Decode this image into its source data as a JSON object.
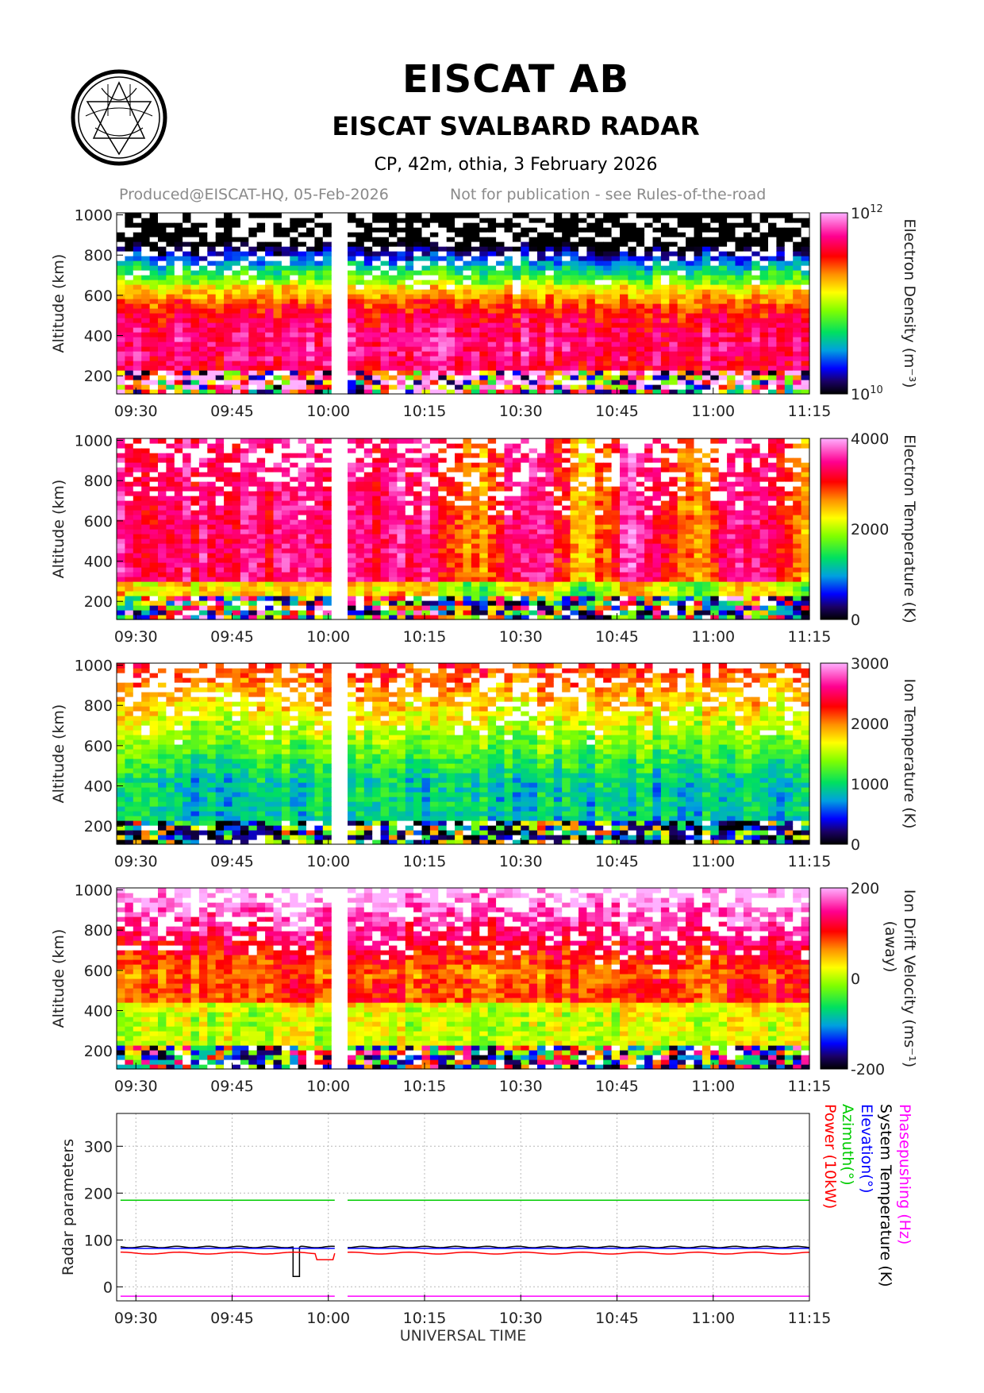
{
  "header": {
    "title": "EISCAT AB",
    "subtitle": "EISCAT SVALBARD RADAR",
    "experiment": "CP, 42m, othia, 3 February 2026",
    "produced": "Produced@EISCAT-HQ, 05-Feb-2026",
    "notice": "Not for publication - see Rules-of-the-road"
  },
  "logo": {
    "name": "eiscat-logo"
  },
  "chart_data": [
    {
      "type": "heatmap",
      "title": "Electron Density",
      "colorbar_label": "Electron Density (m⁻³)",
      "colorbar_ticks": [
        "10",
        "10"
      ],
      "colorbar_tick_exponents": [
        "12",
        "10"
      ],
      "colorbar_range": [
        10000000000,
        1000000000000
      ],
      "colorbar_scale": "log",
      "ylabel": "Altitude (km)",
      "yticks": [
        "1000",
        "800",
        "600",
        "400",
        "200"
      ],
      "ylim": [
        110,
        1010
      ],
      "xticks": [
        "09:30",
        "09:45",
        "10:00",
        "10:15",
        "10:30",
        "10:45",
        "11:00",
        "11:15"
      ],
      "xrange": [
        "09:27",
        "11:15"
      ],
      "data_gap": [
        "10:01",
        "10:03"
      ],
      "profile": "F-region peak near 300–400 km (~5e11); decreasing above; noisy below 230 km"
    },
    {
      "type": "heatmap",
      "title": "Electron Temperature",
      "colorbar_label": "Electron Temperature (K)",
      "colorbar_ticks": [
        "4000",
        "2000",
        "0"
      ],
      "colorbar_range": [
        0,
        4000
      ],
      "ylabel": "Altitude (km)",
      "yticks": [
        "1000",
        "800",
        "600",
        "400",
        "200"
      ],
      "ylim": [
        110,
        1010
      ],
      "xticks": [
        "09:30",
        "09:45",
        "10:00",
        "10:15",
        "10:30",
        "10:45",
        "11:00",
        "11:15"
      ],
      "xrange": [
        "09:27",
        "11:15"
      ],
      "data_gap": [
        "10:01",
        "10:03"
      ],
      "profile": "~3000–4000 K above 300 km, lower after 10:20; noisy below 230 km"
    },
    {
      "type": "heatmap",
      "title": "Ion Temperature",
      "colorbar_label": "Ion Temperature (K)",
      "colorbar_ticks": [
        "3000",
        "2000",
        "1000",
        "0"
      ],
      "colorbar_range": [
        0,
        3000
      ],
      "ylabel": "Altitude (km)",
      "yticks": [
        "1000",
        "800",
        "600",
        "400",
        "200"
      ],
      "ylim": [
        110,
        1010
      ],
      "xticks": [
        "09:30",
        "09:45",
        "10:00",
        "10:15",
        "10:30",
        "10:45",
        "11:00",
        "11:15"
      ],
      "xrange": [
        "09:27",
        "11:15"
      ],
      "data_gap": [
        "10:01",
        "10:03"
      ],
      "profile": "~1000 K at 300–450 km rising to ~2000 K near 800 km; noisy below 230 km"
    },
    {
      "type": "heatmap",
      "title": "Ion Drift Velocity",
      "colorbar_label": "Ion Drift Velocity (ms⁻¹)",
      "colorbar_sublabel": "(away)",
      "colorbar_ticks": [
        "200",
        "0",
        "-200"
      ],
      "colorbar_range": [
        -200,
        200
      ],
      "ylabel": "Altitude (km)",
      "yticks": [
        "1000",
        "800",
        "600",
        "400",
        "200"
      ],
      "ylim": [
        110,
        1010
      ],
      "xticks": [
        "09:30",
        "09:45",
        "10:00",
        "10:15",
        "10:30",
        "10:45",
        "11:00",
        "11:15"
      ],
      "xrange": [
        "09:27",
        "11:15"
      ],
      "data_gap": [
        "10:01",
        "10:03"
      ],
      "profile": "near 0 to +100 m/s at 300–450 km, increasing to +200 m/s above 600 km"
    },
    {
      "type": "line",
      "ylabel": "Radar parameters",
      "xlabel": "UNIVERSAL TIME",
      "yticks": [
        "300",
        "200",
        "100",
        "0"
      ],
      "ylim": [
        -30,
        370
      ],
      "xticks": [
        "09:30",
        "09:45",
        "10:00",
        "10:15",
        "10:30",
        "10:45",
        "11:00",
        "11:15"
      ],
      "xrange": [
        "09:27",
        "11:15"
      ],
      "data_gap": [
        "10:01",
        "10:03"
      ],
      "series": [
        {
          "name": "System Temperature (K)",
          "color": "#000000",
          "approx_value": 85,
          "dip": {
            "time": "09:55",
            "value": 22
          }
        },
        {
          "name": "Elevation(°)",
          "color": "#0000ff",
          "approx_value": 82
        },
        {
          "name": "Azimuth(°)",
          "color": "#00cc00",
          "approx_value": 185
        },
        {
          "name": "Power (10kW)",
          "color": "#ff0000",
          "approx_value": 72
        },
        {
          "name": "Phasepushing (Hz)",
          "color": "#ff00ff",
          "approx_value": -20
        }
      ]
    }
  ]
}
